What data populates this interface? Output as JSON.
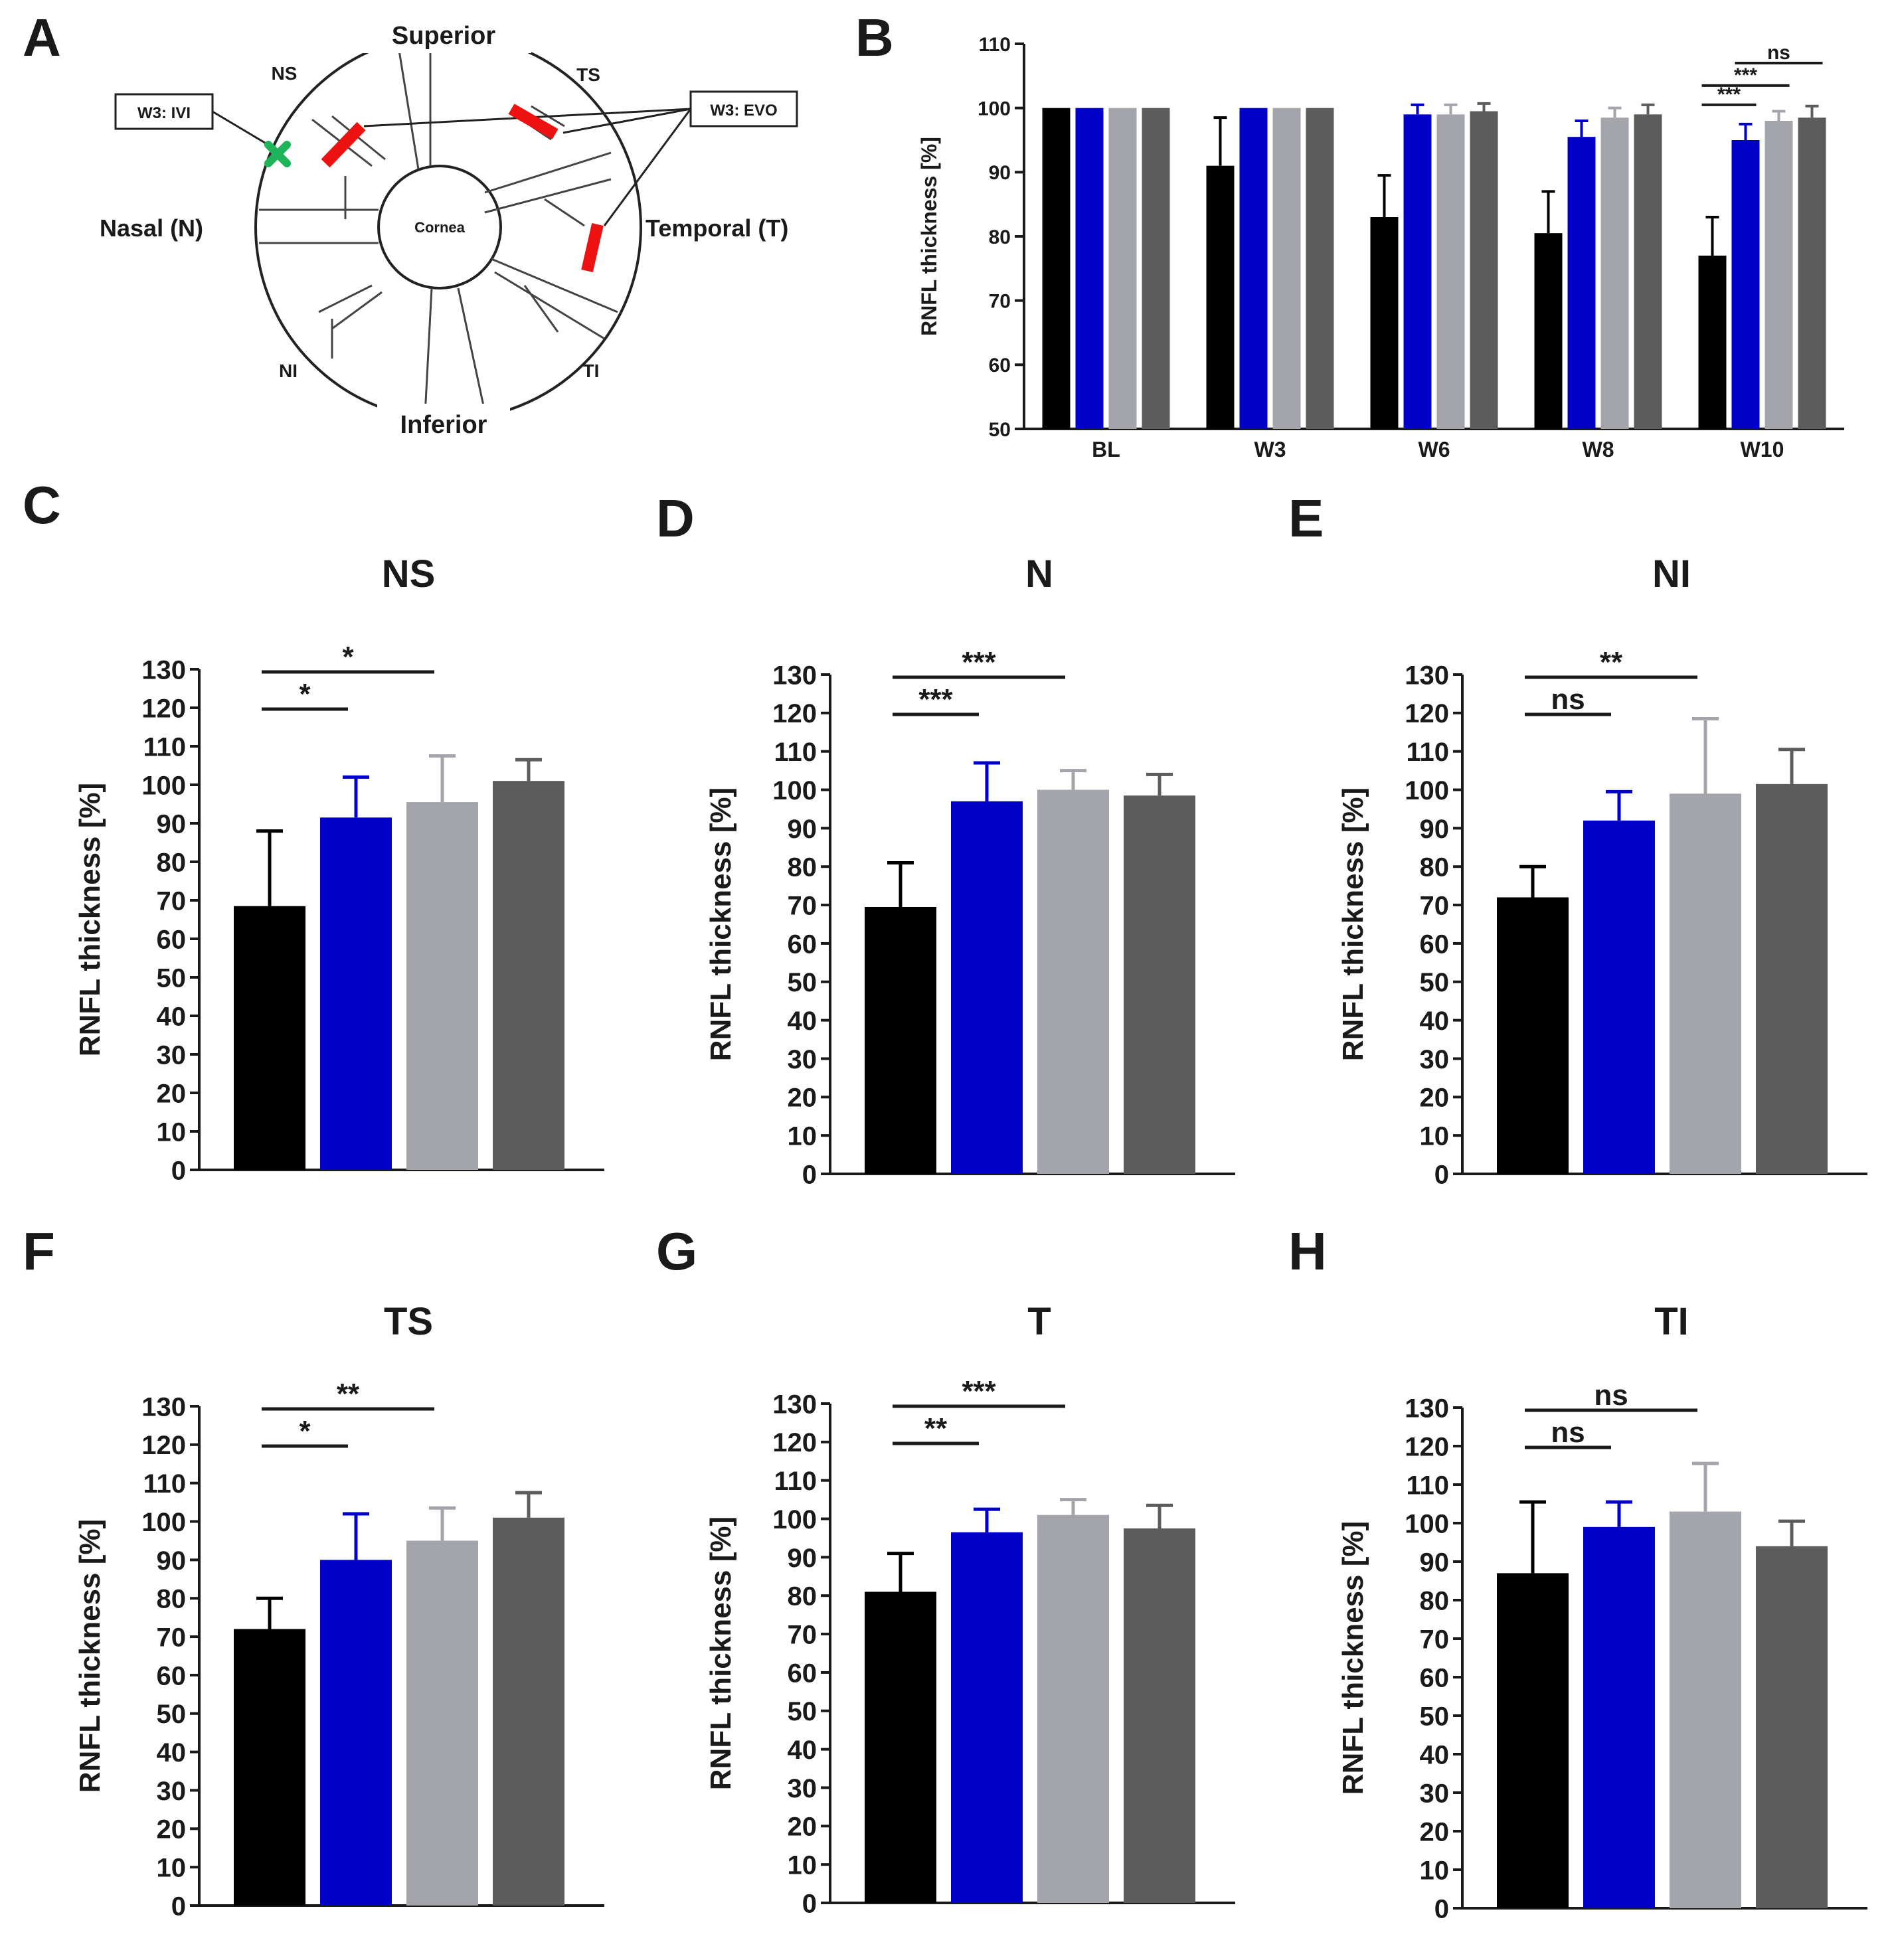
{
  "panel_labels": [
    "A",
    "B",
    "C",
    "D",
    "E",
    "F",
    "G",
    "H"
  ],
  "colors": {
    "series": [
      "#000000",
      "#0000c8",
      "#a4a4ab",
      "#5c5c5c"
    ],
    "axis": "#1a1a1a",
    "marker_red": "#ee1111",
    "marker_green": "#1fb45a"
  },
  "diagram": {
    "superior": "Superior",
    "inferior": "Inferior",
    "nasal": "Nasal (N)",
    "temporal": "Temporal (T)",
    "ns": "NS",
    "ts": "TS",
    "ni": "NI",
    "ti": "TI",
    "cornea": "Cornea",
    "ivi_box": "W3: IVI",
    "evo_box": "W3: EVO",
    "ivi_marker_icon": "green-cross-icon",
    "evo_marker_icon": "red-bar-icon"
  },
  "chart_data": [
    {
      "panel": "B",
      "type": "bar",
      "title": "",
      "xlabel": "",
      "ylabel": "RNFL thickness [%]",
      "categories": [
        "BL",
        "W3",
        "W6",
        "W8",
        "W10"
      ],
      "ylim": [
        50,
        110
      ],
      "yticks": [
        "50",
        "60",
        "70",
        "80",
        "90",
        "100",
        "110"
      ],
      "series": [
        {
          "values": [
            100,
            91,
            83,
            80.5,
            77
          ],
          "errors": [
            0,
            7.5,
            6.5,
            6.5,
            6
          ]
        },
        {
          "values": [
            100,
            100,
            99,
            95.5,
            95
          ],
          "errors": [
            0,
            0,
            1.5,
            2.5,
            2.5
          ]
        },
        {
          "values": [
            100,
            100,
            99,
            98.5,
            98
          ],
          "errors": [
            0,
            0,
            1.5,
            1.5,
            1.5
          ]
        },
        {
          "values": [
            100,
            100,
            99.5,
            99,
            98.5
          ],
          "errors": [
            0,
            0,
            1.2,
            1.5,
            1.8
          ]
        }
      ],
      "significance": [
        {
          "label": "***",
          "from": 0,
          "to": 1
        },
        {
          "label": "***",
          "from": 0,
          "to": 2
        },
        {
          "label": "ns",
          "from": 1,
          "to": 3
        }
      ]
    },
    {
      "panel": "C",
      "type": "bar",
      "title": "NS",
      "ylabel": "RNFL thickness [%]",
      "ylim": [
        0,
        130
      ],
      "yticks": [
        "0",
        "10",
        "20",
        "30",
        "40",
        "50",
        "60",
        "70",
        "80",
        "90",
        "100",
        "110",
        "120",
        "130"
      ],
      "values": [
        68.5,
        91.5,
        95.5,
        101
      ],
      "errors": [
        19.5,
        10.5,
        12,
        5.5
      ],
      "significance": [
        {
          "label": "*",
          "from": 0,
          "to": 1
        },
        {
          "label": "*",
          "from": 0,
          "to": 2
        }
      ]
    },
    {
      "panel": "D",
      "type": "bar",
      "title": "N",
      "ylabel": "RNFL thickness [%]",
      "ylim": [
        0,
        130
      ],
      "yticks": [
        "0",
        "10",
        "20",
        "30",
        "40",
        "50",
        "60",
        "70",
        "80",
        "90",
        "100",
        "110",
        "120",
        "130"
      ],
      "values": [
        69.5,
        97,
        100,
        98.5
      ],
      "errors": [
        11.5,
        10,
        5,
        5.5
      ],
      "significance": [
        {
          "label": "***",
          "from": 0,
          "to": 1
        },
        {
          "label": "***",
          "from": 0,
          "to": 2
        }
      ]
    },
    {
      "panel": "E",
      "type": "bar",
      "title": "NI",
      "ylabel": "RNFL thickness [%]",
      "ylim": [
        0,
        130
      ],
      "yticks": [
        "0",
        "10",
        "20",
        "30",
        "40",
        "50",
        "60",
        "70",
        "80",
        "90",
        "100",
        "110",
        "120",
        "130"
      ],
      "values": [
        72,
        92,
        99,
        101.5
      ],
      "errors": [
        8,
        7.5,
        19.5,
        9
      ],
      "significance": [
        {
          "label": "ns",
          "from": 0,
          "to": 1
        },
        {
          "label": "**",
          "from": 0,
          "to": 2
        }
      ]
    },
    {
      "panel": "F",
      "type": "bar",
      "title": "TS",
      "ylabel": "RNFL thickness [%]",
      "ylim": [
        0,
        130
      ],
      "yticks": [
        "0",
        "10",
        "20",
        "30",
        "40",
        "50",
        "60",
        "70",
        "80",
        "90",
        "100",
        "110",
        "120",
        "130"
      ],
      "values": [
        72,
        90,
        95,
        101
      ],
      "errors": [
        8,
        12,
        8.5,
        6.5
      ],
      "significance": [
        {
          "label": "*",
          "from": 0,
          "to": 1
        },
        {
          "label": "**",
          "from": 0,
          "to": 2
        }
      ]
    },
    {
      "panel": "G",
      "type": "bar",
      "title": "T",
      "ylabel": "RNFL thickness [%]",
      "ylim": [
        0,
        130
      ],
      "yticks": [
        "0",
        "10",
        "20",
        "30",
        "40",
        "50",
        "60",
        "70",
        "80",
        "90",
        "100",
        "110",
        "120",
        "130"
      ],
      "values": [
        81,
        96.5,
        101,
        97.5
      ],
      "errors": [
        10,
        6,
        4,
        6
      ],
      "significance": [
        {
          "label": "**",
          "from": 0,
          "to": 1
        },
        {
          "label": "***",
          "from": 0,
          "to": 2
        }
      ]
    },
    {
      "panel": "H",
      "type": "bar",
      "title": "TI",
      "ylabel": "RNFL thickness [%]",
      "ylim": [
        0,
        130
      ],
      "yticks": [
        "0",
        "10",
        "20",
        "30",
        "40",
        "50",
        "60",
        "70",
        "80",
        "90",
        "100",
        "110",
        "120",
        "130"
      ],
      "values": [
        87,
        99,
        103,
        94
      ],
      "errors": [
        18.5,
        6.5,
        12.5,
        6.5
      ],
      "significance": [
        {
          "label": "ns",
          "from": 0,
          "to": 1
        },
        {
          "label": "ns",
          "from": 0,
          "to": 2
        }
      ]
    }
  ]
}
